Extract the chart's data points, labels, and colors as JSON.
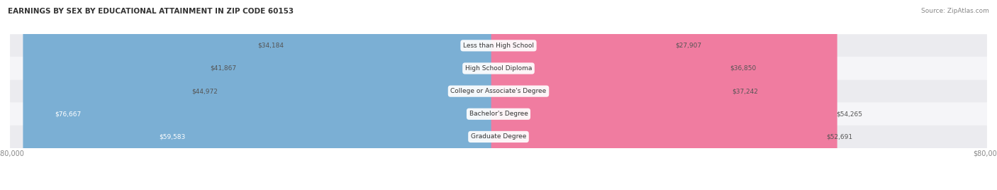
{
  "title": "EARNINGS BY SEX BY EDUCATIONAL ATTAINMENT IN ZIP CODE 60153",
  "source": "Source: ZipAtlas.com",
  "categories": [
    "Less than High School",
    "High School Diploma",
    "College or Associate's Degree",
    "Bachelor's Degree",
    "Graduate Degree"
  ],
  "male_values": [
    34184,
    41867,
    44972,
    76667,
    59583
  ],
  "female_values": [
    27907,
    36850,
    37242,
    54265,
    52691
  ],
  "max_val": 80000,
  "male_color": "#7bafd4",
  "female_color": "#f07ca0",
  "label_color_inside": "#ffffff",
  "label_color_outside": "#555555",
  "row_bg_even": "#ebebef",
  "row_bg_odd": "#f5f5f8",
  "category_label_color": "#333333",
  "axis_label_color": "#888888",
  "title_color": "#333333",
  "source_color": "#888888",
  "background_color": "#ffffff",
  "inside_threshold": 55000,
  "figsize": [
    14.06,
    2.68
  ],
  "dpi": 100
}
